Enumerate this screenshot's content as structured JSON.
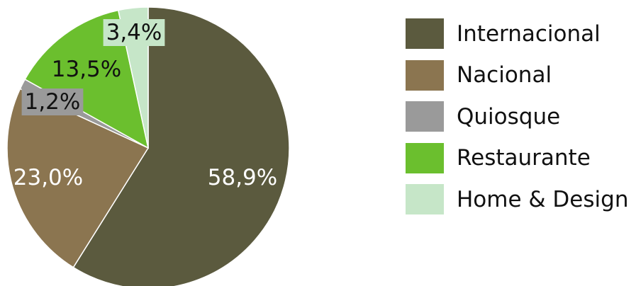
{
  "chart_data": {
    "type": "pie",
    "title": "",
    "slices": [
      {
        "label": "Internacional",
        "value": 58.9,
        "value_label": "58,9%",
        "color": "#5b5a3e",
        "text_color": "#ffffff",
        "label_bg": ""
      },
      {
        "label": "Nacional",
        "value": 23.0,
        "value_label": "23,0%",
        "color": "#8b7550",
        "text_color": "#ffffff",
        "label_bg": ""
      },
      {
        "label": "Quiosque",
        "value": 1.2,
        "value_label": "1,2%",
        "color": "#9a9a9a",
        "text_color": "#111111",
        "label_bg": "#9a9a9a"
      },
      {
        "label": "Restaurante",
        "value": 13.5,
        "value_label": "13,5%",
        "color": "#6bbf2e",
        "text_color": "#111111",
        "label_bg": ""
      },
      {
        "label": "Home & Design",
        "value": 3.4,
        "value_label": "3,4%",
        "color": "#c6e6c8",
        "text_color": "#111111",
        "label_bg": "#c6e6c8"
      }
    ],
    "start_angle_deg": 0,
    "direction": "clockwise",
    "legend_position": "right"
  }
}
